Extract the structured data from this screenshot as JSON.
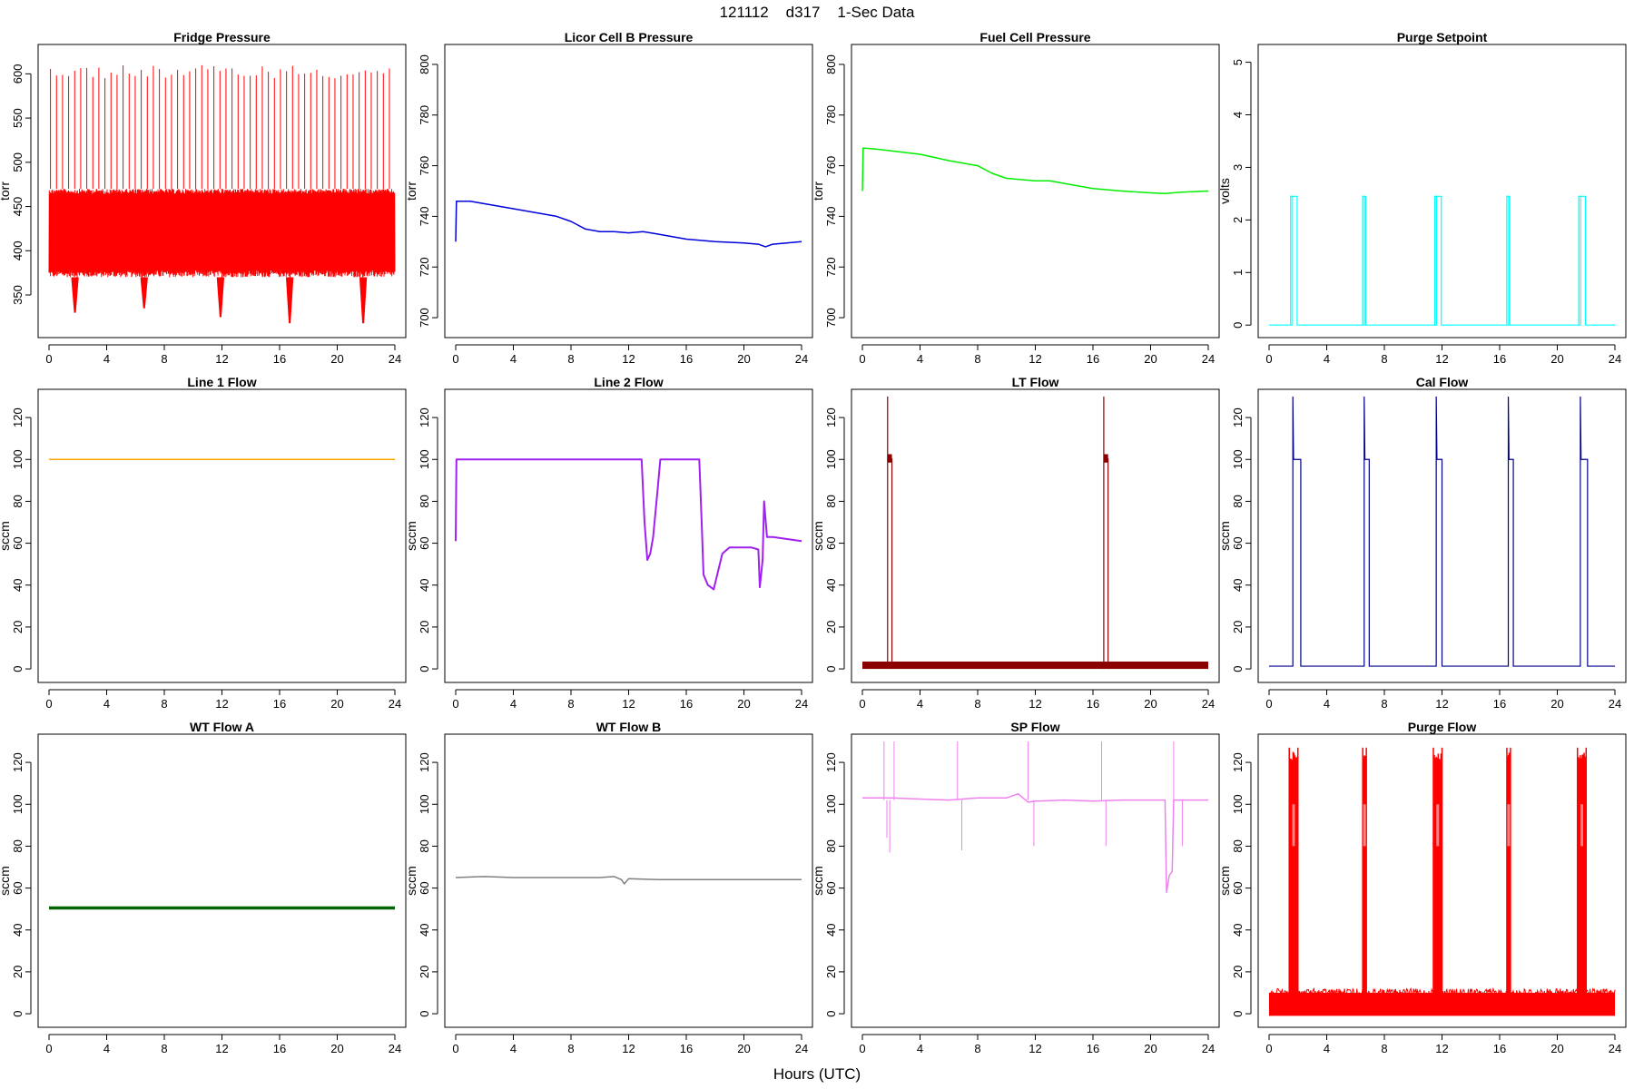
{
  "page": {
    "title": "121112    d317    1-Sec Data",
    "xlabel": "Hours (UTC)"
  },
  "chart_data": [
    {
      "type": "line",
      "title": "Fridge Pressure",
      "ylabel": "torr",
      "xlim": [
        0,
        24
      ],
      "ylim": [
        310,
        625
      ],
      "xticks": [
        0,
        4,
        8,
        12,
        16,
        20,
        24
      ],
      "yticks": [
        350,
        400,
        450,
        500,
        550,
        600
      ],
      "color": "#ff0000",
      "series": [
        {
          "name": "Fridge Pressure",
          "kind": "oscillating_band",
          "band_low": 370,
          "band_high": 470,
          "spike_top": 610,
          "spike_interval_h": 0.42,
          "dips": [
            {
              "x": 1.8,
              "y": 330
            },
            {
              "x": 6.6,
              "y": 335
            },
            {
              "x": 11.9,
              "y": 325
            },
            {
              "x": 16.7,
              "y": 318
            },
            {
              "x": 21.8,
              "y": 318
            }
          ]
        }
      ]
    },
    {
      "type": "line",
      "title": "Licor Cell B Pressure",
      "ylabel": "torr",
      "xlim": [
        0,
        24
      ],
      "ylim": [
        695,
        805
      ],
      "xticks": [
        0,
        4,
        8,
        12,
        16,
        20,
        24
      ],
      "yticks": [
        700,
        720,
        740,
        760,
        780,
        800
      ],
      "color": "#0000dd",
      "series": [
        {
          "name": "Licor Cell B Pressure",
          "x": [
            0,
            0.05,
            1,
            4,
            7,
            8,
            9,
            10,
            11,
            12,
            13,
            14,
            16,
            18,
            20,
            21,
            21.5,
            22,
            24
          ],
          "y": [
            730,
            746,
            746,
            743,
            740,
            738,
            735,
            734,
            734,
            733.5,
            734,
            733,
            731,
            730,
            729.5,
            729,
            728,
            729,
            730
          ]
        }
      ]
    },
    {
      "type": "line",
      "title": "Fuel Cell Pressure",
      "ylabel": "torr",
      "xlim": [
        0,
        24
      ],
      "ylim": [
        695,
        805
      ],
      "xticks": [
        0,
        4,
        8,
        12,
        16,
        20,
        24
      ],
      "yticks": [
        700,
        720,
        740,
        760,
        780,
        800
      ],
      "color": "#00ee00",
      "series": [
        {
          "name": "Fuel Cell Pressure",
          "x": [
            0,
            0.05,
            1,
            4,
            6,
            8,
            9,
            10,
            11,
            12,
            13,
            14,
            16,
            18,
            20,
            21,
            22,
            24
          ],
          "y": [
            750,
            767,
            766.5,
            764.5,
            762,
            760,
            757,
            755,
            754.5,
            754,
            754,
            753,
            751,
            750,
            749.3,
            749,
            749.5,
            750
          ]
        }
      ]
    },
    {
      "type": "line",
      "title": "Purge Setpoint",
      "ylabel": "volts",
      "xlim": [
        0,
        24
      ],
      "ylim": [
        -0.1,
        5.2
      ],
      "xticks": [
        0,
        4,
        8,
        12,
        16,
        20,
        24
      ],
      "yticks": [
        0,
        1,
        2,
        3,
        4,
        5
      ],
      "color": "#00ffff",
      "series": [
        {
          "name": "Purge Setpoint",
          "kind": "pulses",
          "baseline": 0,
          "level": 2.45,
          "pulses": [
            [
              1.5,
              1.95
            ],
            [
              6.5,
              6.7
            ],
            [
              11.5,
              11.95
            ],
            [
              16.5,
              16.7
            ],
            [
              21.5,
              21.95
            ]
          ]
        }
      ]
    },
    {
      "type": "line",
      "title": "Line 1 Flow",
      "ylabel": "sccm",
      "xlim": [
        0,
        24
      ],
      "ylim": [
        -3,
        130
      ],
      "xticks": [
        0,
        4,
        8,
        12,
        16,
        20,
        24
      ],
      "yticks": [
        0,
        20,
        40,
        60,
        80,
        100,
        120
      ],
      "color": "#ffa500",
      "series": [
        {
          "name": "Line 1 Flow",
          "x": [
            0,
            24
          ],
          "y": [
            100,
            100
          ]
        }
      ]
    },
    {
      "type": "line",
      "title": "Line 2 Flow",
      "ylabel": "sccm",
      "xlim": [
        0,
        24
      ],
      "ylim": [
        -3,
        130
      ],
      "xticks": [
        0,
        4,
        8,
        12,
        16,
        20,
        24
      ],
      "yticks": [
        0,
        20,
        40,
        60,
        80,
        100,
        120
      ],
      "color": "#a020f0",
      "series": [
        {
          "name": "Line 2 Flow",
          "x": [
            0,
            0.05,
            12.9,
            13.1,
            13.3,
            13.5,
            13.7,
            14,
            14.2,
            16.9,
            17.05,
            17.2,
            17.5,
            17.9,
            18.5,
            19,
            20.5,
            21,
            21.1,
            21.3,
            21.4,
            21.6,
            22,
            24
          ],
          "y": [
            61,
            100,
            100,
            70,
            52,
            55,
            63,
            85,
            100,
            100,
            73,
            45,
            40,
            38,
            55,
            58,
            58,
            57,
            39,
            52,
            80,
            63,
            63,
            61
          ]
        }
      ]
    },
    {
      "type": "line",
      "title": "LT Flow",
      "ylabel": "sccm",
      "xlim": [
        0,
        24
      ],
      "ylim": [
        -3,
        130
      ],
      "xticks": [
        0,
        4,
        8,
        12,
        16,
        20,
        24
      ],
      "yticks": [
        0,
        20,
        40,
        60,
        80,
        100,
        120
      ],
      "color": "#8b0000",
      "series": [
        {
          "name": "LT Flow",
          "kind": "pulses_band",
          "band_low": 0,
          "band_high": 3.5,
          "level": 100.5,
          "spike": 130,
          "pulses": [
            [
              1.75,
              2.05
            ],
            [
              16.75,
              17.05
            ]
          ]
        }
      ]
    },
    {
      "type": "line",
      "title": "Cal Flow",
      "ylabel": "sccm",
      "xlim": [
        0,
        24
      ],
      "ylim": [
        -3,
        130
      ],
      "xticks": [
        0,
        4,
        8,
        12,
        16,
        20,
        24
      ],
      "yticks": [
        0,
        20,
        40,
        60,
        80,
        100,
        120
      ],
      "color": "#00008b",
      "series": [
        {
          "name": "Cal Flow",
          "kind": "pulses",
          "baseline": 1.3,
          "level": 100,
          "spike": 130,
          "pulses": [
            [
              1.65,
              2.2
            ],
            [
              6.6,
              6.95
            ],
            [
              11.6,
              12.0
            ],
            [
              16.6,
              16.95
            ],
            [
              21.6,
              22.1
            ]
          ]
        }
      ]
    },
    {
      "type": "line",
      "title": "WT Flow A",
      "ylabel": "sccm",
      "xlim": [
        0,
        24
      ],
      "ylim": [
        -3,
        130
      ],
      "xticks": [
        0,
        4,
        8,
        12,
        16,
        20,
        24
      ],
      "yticks": [
        0,
        20,
        40,
        60,
        80,
        100,
        120
      ],
      "color": "#006400",
      "series": [
        {
          "name": "WT Flow A",
          "x": [
            0,
            24
          ],
          "y": [
            50.5,
            50.5
          ]
        }
      ]
    },
    {
      "type": "line",
      "title": "WT Flow B",
      "ylabel": "sccm",
      "xlim": [
        0,
        24
      ],
      "ylim": [
        -3,
        130
      ],
      "xticks": [
        0,
        4,
        8,
        12,
        16,
        20,
        24
      ],
      "yticks": [
        0,
        20,
        40,
        60,
        80,
        100,
        120
      ],
      "color": "#808080",
      "series": [
        {
          "name": "WT Flow B",
          "x": [
            0,
            2,
            4,
            6,
            8,
            10,
            11,
            11.5,
            11.7,
            12,
            14,
            16,
            18,
            20,
            22,
            24
          ],
          "y": [
            65,
            65.5,
            65,
            65,
            65,
            65,
            65.5,
            64,
            62,
            64.5,
            64,
            64,
            64,
            64,
            64,
            64
          ]
        }
      ]
    },
    {
      "type": "line",
      "title": "SP Flow",
      "ylabel": "sccm",
      "xlim": [
        0,
        24
      ],
      "ylim": [
        -3,
        130
      ],
      "xticks": [
        0,
        4,
        8,
        12,
        16,
        20,
        24
      ],
      "yticks": [
        0,
        20,
        40,
        60,
        80,
        100,
        120
      ],
      "color": "#ee82ee",
      "series": [
        {
          "name": "SP Flow",
          "x": [
            0,
            2,
            4,
            6,
            8,
            10,
            10.8,
            11.5,
            12,
            14,
            16,
            18,
            20,
            21,
            21.1,
            21.3,
            21.5,
            21.6,
            22,
            24
          ],
          "y": [
            103,
            103,
            102.5,
            102,
            103,
            103,
            105,
            101,
            101.5,
            102,
            101.5,
            102,
            102,
            102,
            58,
            66,
            68,
            102,
            102,
            102
          ]
        }
      ],
      "spikes": [
        {
          "x": 1.5,
          "y": 130
        },
        {
          "x": 1.7,
          "y": 84
        },
        {
          "x": 1.9,
          "y": 77
        },
        {
          "x": 2.2,
          "y": 130
        },
        {
          "x": 6.6,
          "y": 130
        },
        {
          "x": 6.9,
          "y": 78
        },
        {
          "x": 11.5,
          "y": 130
        },
        {
          "x": 11.9,
          "y": 80
        },
        {
          "x": 16.6,
          "y": 130
        },
        {
          "x": 16.9,
          "y": 80
        },
        {
          "x": 21.6,
          "y": 130
        },
        {
          "x": 22.2,
          "y": 80
        }
      ]
    },
    {
      "type": "line",
      "title": "Purge Flow",
      "ylabel": "sccm",
      "xlim": [
        0,
        24
      ],
      "ylim": [
        -3,
        130
      ],
      "xticks": [
        0,
        4,
        8,
        12,
        16,
        20,
        24
      ],
      "yticks": [
        0,
        20,
        40,
        60,
        80,
        100,
        120
      ],
      "color": "#ff0000",
      "series": [
        {
          "name": "Purge Flow",
          "kind": "noisy_band_pulses",
          "band_low": -1,
          "band_high": 12,
          "level": 125,
          "pulses": [
            [
              1.4,
              2.0
            ],
            [
              6.5,
              6.75
            ],
            [
              11.4,
              12.0
            ],
            [
              16.5,
              16.75
            ],
            [
              21.4,
              22.0
            ]
          ]
        }
      ]
    }
  ]
}
